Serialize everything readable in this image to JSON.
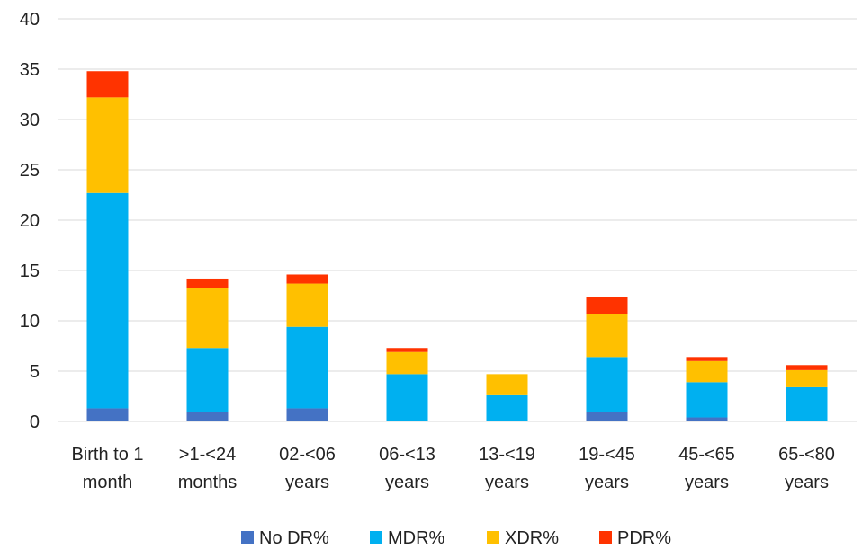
{
  "chart_data": {
    "type": "bar",
    "stacked": true,
    "title": "",
    "xlabel": "",
    "ylabel": "",
    "ylim": [
      0,
      40
    ],
    "yticks": [
      0,
      5,
      10,
      15,
      20,
      25,
      30,
      35,
      40
    ],
    "grid": true,
    "legend_position": "bottom",
    "categories": [
      [
        "Birth to 1",
        "month"
      ],
      [
        ">1-<24",
        "months"
      ],
      [
        "02-<06",
        "years"
      ],
      [
        "06-<13",
        "years"
      ],
      [
        "13-<19",
        "years"
      ],
      [
        "19-<45",
        "years"
      ],
      [
        "45-<65",
        "years"
      ],
      [
        "65-<80",
        "years"
      ]
    ],
    "series": [
      {
        "name": "No DR%",
        "color": "#4472C4",
        "values": [
          1.3,
          0.9,
          1.3,
          0,
          0,
          0.9,
          0.4,
          0
        ]
      },
      {
        "name": "MDR%",
        "color": "#00B0F0",
        "values": [
          21.4,
          6.4,
          8.1,
          4.7,
          2.6,
          5.5,
          3.5,
          3.4
        ]
      },
      {
        "name": "XDR%",
        "color": "#FFC000",
        "values": [
          9.5,
          6.0,
          4.3,
          2.2,
          2.1,
          4.3,
          2.1,
          1.7
        ]
      },
      {
        "name": "PDR%",
        "color": "#FF3300",
        "values": [
          2.6,
          0.9,
          0.9,
          0.4,
          0,
          1.7,
          0.4,
          0.5
        ]
      }
    ]
  }
}
